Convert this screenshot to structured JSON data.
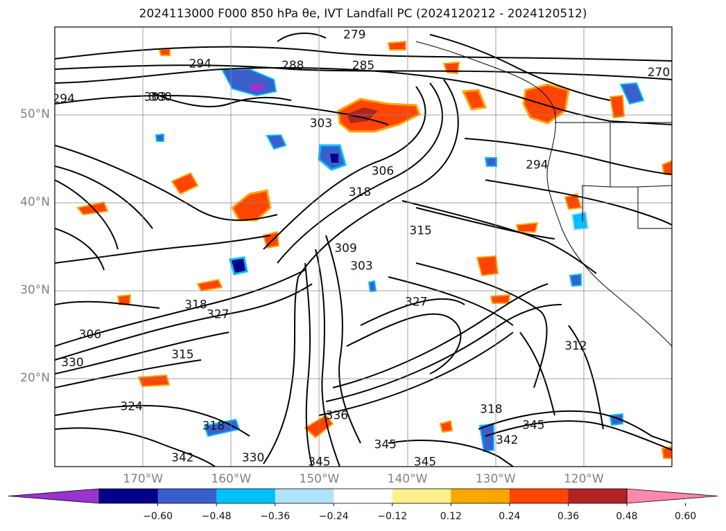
{
  "title": "2024113000 F000 850 hPa θe, IVT Landfall PC (2024120212 - 2024120512)",
  "map": {
    "projection": "PlateCarree",
    "extent_lon": [
      -180,
      -110
    ],
    "extent_lat": [
      10,
      60
    ],
    "grid": true,
    "lat_labels": [
      "20°N",
      "30°N",
      "40°N",
      "50°N"
    ],
    "lon_labels": [
      "170°W",
      "160°W",
      "150°W",
      "140°W",
      "130°W",
      "120°W"
    ],
    "contour_labels": [
      {
        "text": "279",
        "lon": -146.0,
        "lat": 59.1
      },
      {
        "text": "288",
        "lon": -153.0,
        "lat": 55.6
      },
      {
        "text": "285",
        "lon": -145.0,
        "lat": 55.6
      },
      {
        "text": "294",
        "lon": -163.5,
        "lat": 55.8
      },
      {
        "text": "300",
        "lon": -168.0,
        "lat": 52.0
      },
      {
        "text": "303",
        "lon": -168.6,
        "lat": 52.0
      },
      {
        "text": "294",
        "lon": -179.0,
        "lat": 51.8
      },
      {
        "text": "303",
        "lon": -149.8,
        "lat": 49.0
      },
      {
        "text": "294",
        "lon": -125.3,
        "lat": 44.3
      },
      {
        "text": "270",
        "lon": -111.5,
        "lat": 54.8
      },
      {
        "text": "318",
        "lon": -145.4,
        "lat": 41.2
      },
      {
        "text": "306",
        "lon": -142.8,
        "lat": 43.6
      },
      {
        "text": "315",
        "lon": -138.5,
        "lat": 36.8
      },
      {
        "text": "309",
        "lon": -147.0,
        "lat": 34.8
      },
      {
        "text": "303",
        "lon": -145.2,
        "lat": 32.8
      },
      {
        "text": "327",
        "lon": -139.0,
        "lat": 28.7
      },
      {
        "text": "318",
        "lon": -164.0,
        "lat": 28.4
      },
      {
        "text": "327",
        "lon": -161.5,
        "lat": 27.3
      },
      {
        "text": "306",
        "lon": -176.0,
        "lat": 25.0
      },
      {
        "text": "330",
        "lon": -178.0,
        "lat": 21.8
      },
      {
        "text": "315",
        "lon": -165.5,
        "lat": 22.7
      },
      {
        "text": "312",
        "lon": -120.9,
        "lat": 23.7
      },
      {
        "text": "318",
        "lon": -130.5,
        "lat": 16.5
      },
      {
        "text": "342",
        "lon": -128.7,
        "lat": 13.0
      },
      {
        "text": "345",
        "lon": -125.7,
        "lat": 14.7
      },
      {
        "text": "318",
        "lon": -162.0,
        "lat": 14.6
      },
      {
        "text": "342",
        "lon": -165.5,
        "lat": 11.0
      },
      {
        "text": "345",
        "lon": -150.0,
        "lat": 10.5
      },
      {
        "text": "345",
        "lon": -138.0,
        "lat": 10.5
      },
      {
        "text": "336",
        "lon": -148.0,
        "lat": 15.8
      },
      {
        "text": "345",
        "lon": -142.5,
        "lat": 12.5
      },
      {
        "text": "330",
        "lon": -157.5,
        "lat": 11.0
      },
      {
        "text": "324",
        "lon": -171.3,
        "lat": 16.8
      }
    ]
  },
  "colorbar": {
    "tick_labels": [
      "−0.60",
      "−0.48",
      "−0.36",
      "−0.24",
      "−0.12",
      "0.12",
      "0.24",
      "0.36",
      "0.48",
      "0.60"
    ],
    "colors": [
      "#9933cc",
      "#00008b",
      "#3a5fcd",
      "#00bfff",
      "#b0e2ff",
      "#ffffff",
      "#fff08b",
      "#ffa500",
      "#ff4500",
      "#b22222",
      "#ff88aa"
    ],
    "extend": "both"
  },
  "colors": {
    "contour": "#000000",
    "grid": "#888888",
    "coast": "#000000",
    "label": "#808080"
  }
}
